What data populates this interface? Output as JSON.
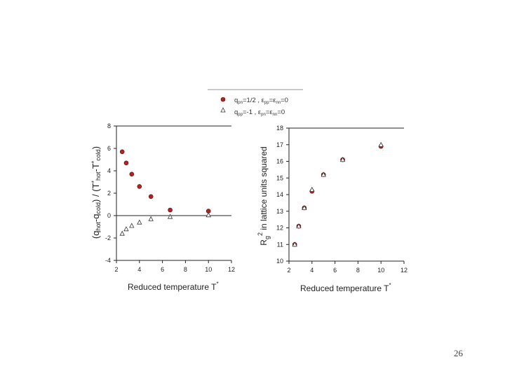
{
  "page": {
    "number": "26"
  },
  "legend": {
    "entries": [
      {
        "marker": "filled-circle",
        "color": "#b22222",
        "label": "q_{pn}=1/2 ,  ε_{pp}=ε_{nn}=0"
      },
      {
        "marker": "open-triangle",
        "color": "#333333",
        "label": "q_{pp}=-1 ,  ε_{pn}=ε_{nn}=0"
      }
    ]
  },
  "chart_data": [
    {
      "type": "scatter",
      "title": "",
      "xlabel": "Reduced temperature T*",
      "ylabel": "(q_hot-q_cold) / (T*_hot-T*_cold)",
      "xlim": [
        2,
        12
      ],
      "ylim": [
        -4,
        8
      ],
      "xticks": [
        2,
        4,
        6,
        8,
        10,
        12
      ],
      "yticks": [
        -4,
        -2,
        0,
        2,
        4,
        6,
        8
      ],
      "grid": false,
      "zero_line": true,
      "series": [
        {
          "marker": "filled-circle",
          "color": "#b22222",
          "x": [
            2.5,
            2.85,
            3.33,
            4.0,
            5.0,
            6.67,
            10.0
          ],
          "y": [
            5.7,
            4.7,
            3.7,
            2.6,
            1.7,
            0.5,
            0.4
          ]
        },
        {
          "marker": "open-triangle",
          "color": "#333333",
          "x": [
            2.5,
            2.85,
            3.33,
            4.0,
            5.0,
            6.67,
            10.0
          ],
          "y": [
            -1.6,
            -1.2,
            -0.9,
            -0.6,
            -0.3,
            -0.1,
            0.05
          ]
        }
      ]
    },
    {
      "type": "scatter",
      "title": "",
      "xlabel": "Reduced temperature T*",
      "ylabel": "R_g^2 in lattice units squared",
      "xlim": [
        2,
        12
      ],
      "ylim": [
        10,
        18
      ],
      "xticks": [
        2,
        4,
        6,
        8,
        10,
        12
      ],
      "yticks": [
        10,
        11,
        12,
        13,
        14,
        15,
        16,
        17,
        18
      ],
      "grid": false,
      "series": [
        {
          "marker": "filled-circle",
          "color": "#b22222",
          "x": [
            2.5,
            2.85,
            3.33,
            4.0,
            5.0,
            6.67,
            10.0
          ],
          "y": [
            11.0,
            12.1,
            13.2,
            14.2,
            15.2,
            16.1,
            16.9
          ]
        },
        {
          "marker": "open-triangle",
          "color": "#333333",
          "x": [
            2.5,
            2.85,
            3.33,
            4.0,
            5.0,
            6.67,
            10.0
          ],
          "y": [
            11.0,
            12.1,
            13.2,
            14.3,
            15.2,
            16.1,
            17.0
          ]
        }
      ]
    }
  ]
}
